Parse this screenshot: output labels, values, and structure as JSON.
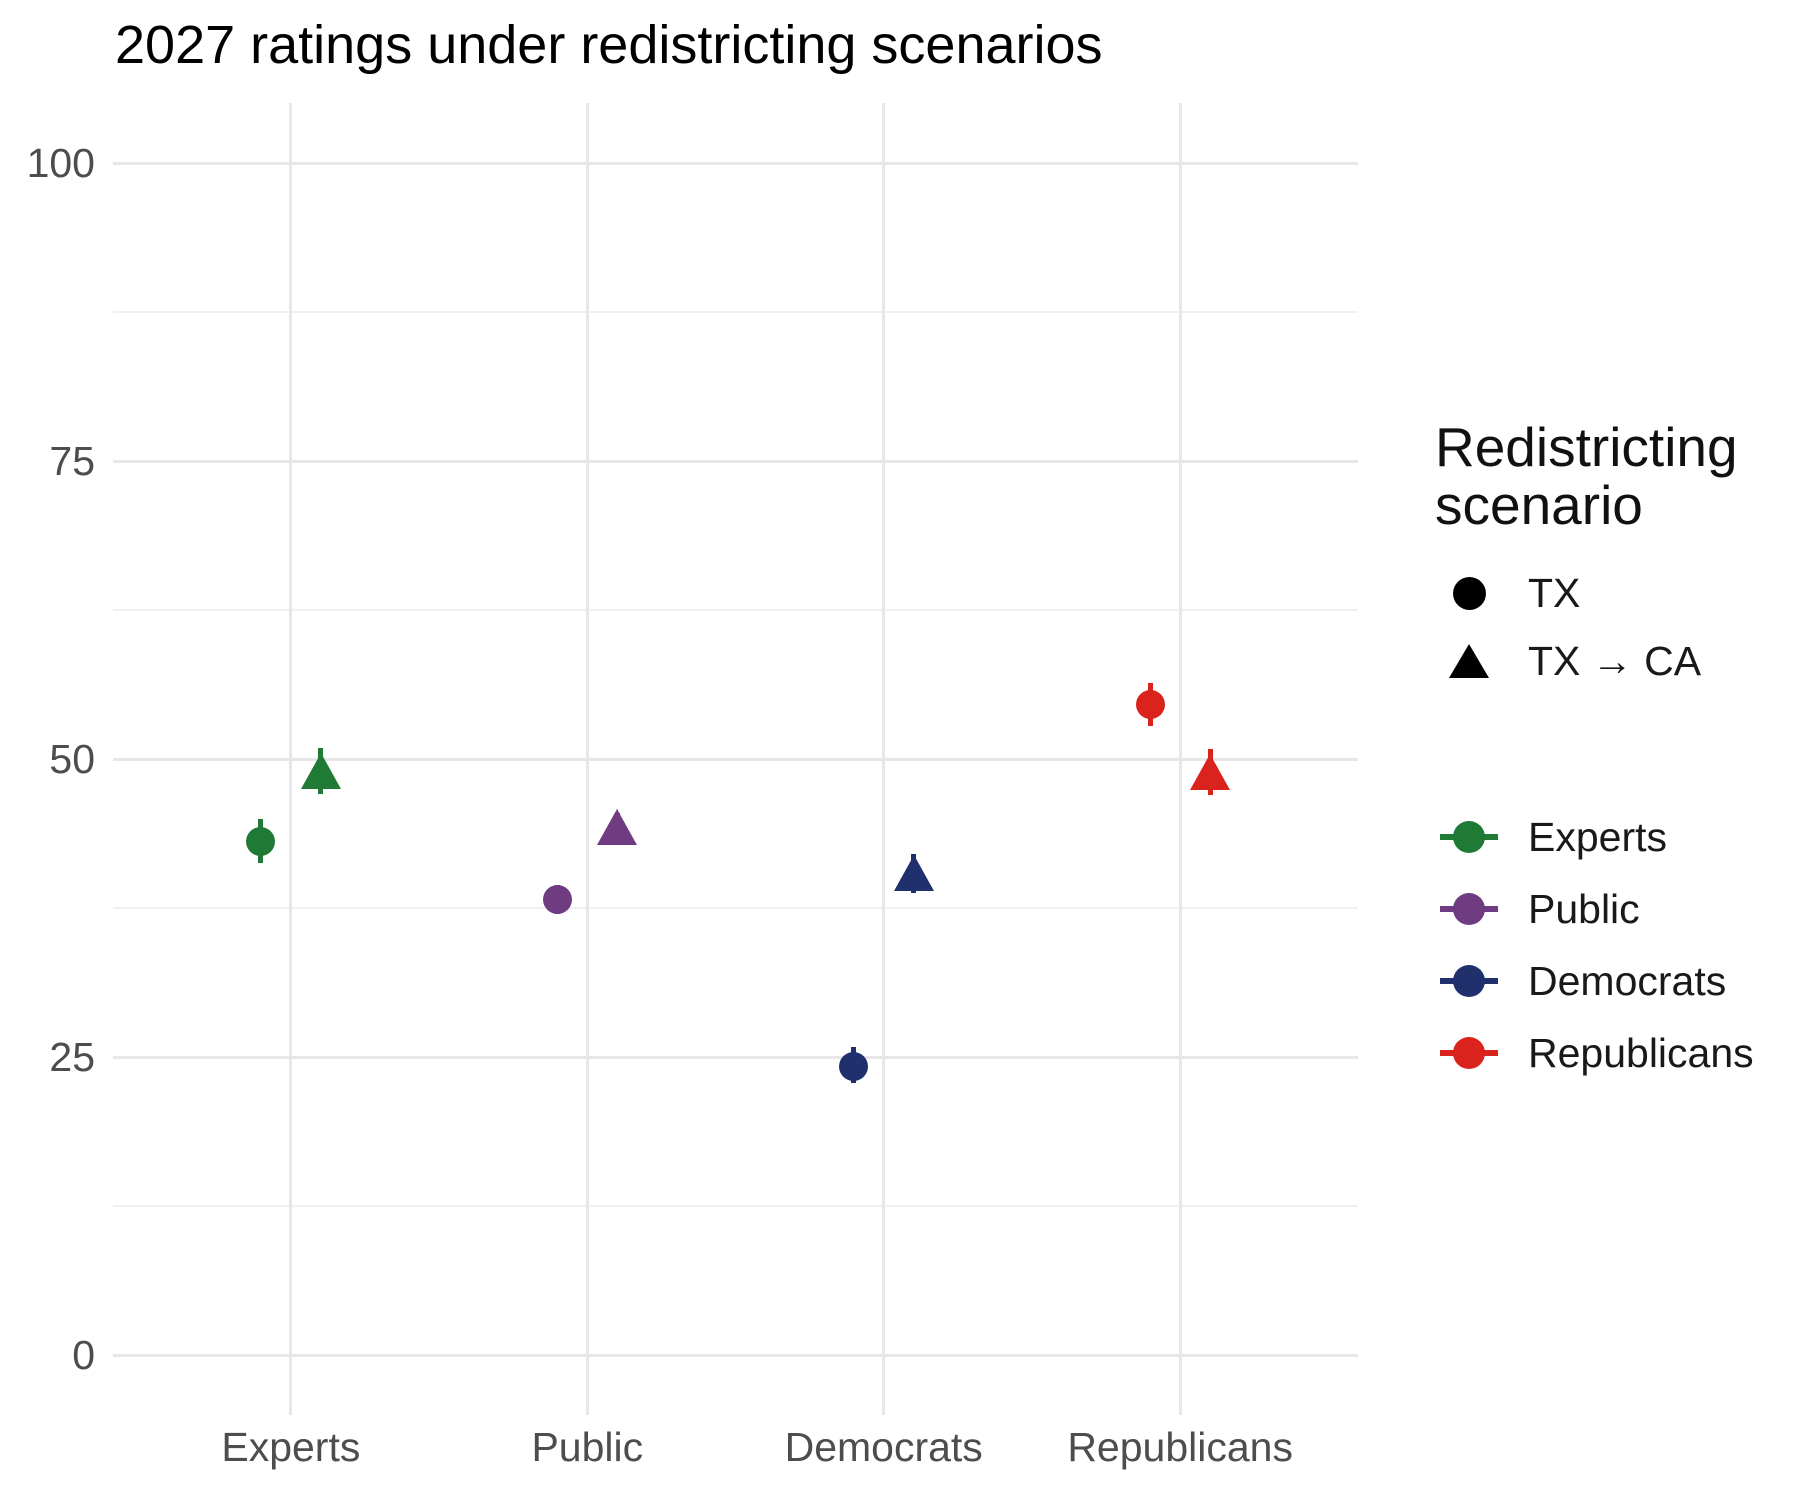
{
  "title": "2027 ratings under redistricting scenarios",
  "chart_data": {
    "type": "scatter",
    "title": "2027 ratings under redistricting scenarios",
    "categories": [
      "Experts",
      "Public",
      "Democrats",
      "Republicans"
    ],
    "category_colors": [
      "#1e7a34",
      "#6f3c82",
      "#20306d",
      "#da231c"
    ],
    "series": [
      {
        "name": "TX",
        "marker": "circle",
        "values": [
          43.1,
          38.2,
          24.2,
          54.6
        ],
        "err_low": [
          41.3,
          37.0,
          22.8,
          52.8
        ],
        "err_high": [
          45.0,
          39.4,
          25.8,
          56.4
        ]
      },
      {
        "name": "TX → CA",
        "marker": "triangle",
        "values": [
          49.0,
          44.3,
          40.4,
          48.9
        ],
        "err_low": [
          47.1,
          43.1,
          38.8,
          47.0
        ],
        "err_high": [
          50.9,
          45.5,
          42.0,
          50.8
        ]
      }
    ],
    "ylim": [
      0,
      100
    ],
    "y_ticks": [
      "0",
      "25",
      "50",
      "75",
      "100"
    ],
    "y_tick_values": [
      0,
      25,
      50,
      75,
      100
    ],
    "y_minor_values": [
      12.5,
      37.5,
      62.5,
      87.5
    ],
    "grid": true,
    "legend_position": "right",
    "grid_major_color": "#e7e7e7",
    "grid_minor_color": "#f0f0f0",
    "axis_text_color": "#4d4d4d"
  },
  "legend_shape": {
    "title_line1": "Redistricting",
    "title_line2": "scenario",
    "items": [
      {
        "label": "TX",
        "marker": "circle"
      },
      {
        "label": "TX → CA",
        "marker": "triangle"
      }
    ]
  },
  "legend_color": {
    "items": [
      {
        "label": "Experts",
        "color": "#1e7a34"
      },
      {
        "label": "Public",
        "color": "#6f3c82"
      },
      {
        "label": "Democrats",
        "color": "#20306d"
      },
      {
        "label": "Republicans",
        "color": "#da231c"
      }
    ]
  }
}
